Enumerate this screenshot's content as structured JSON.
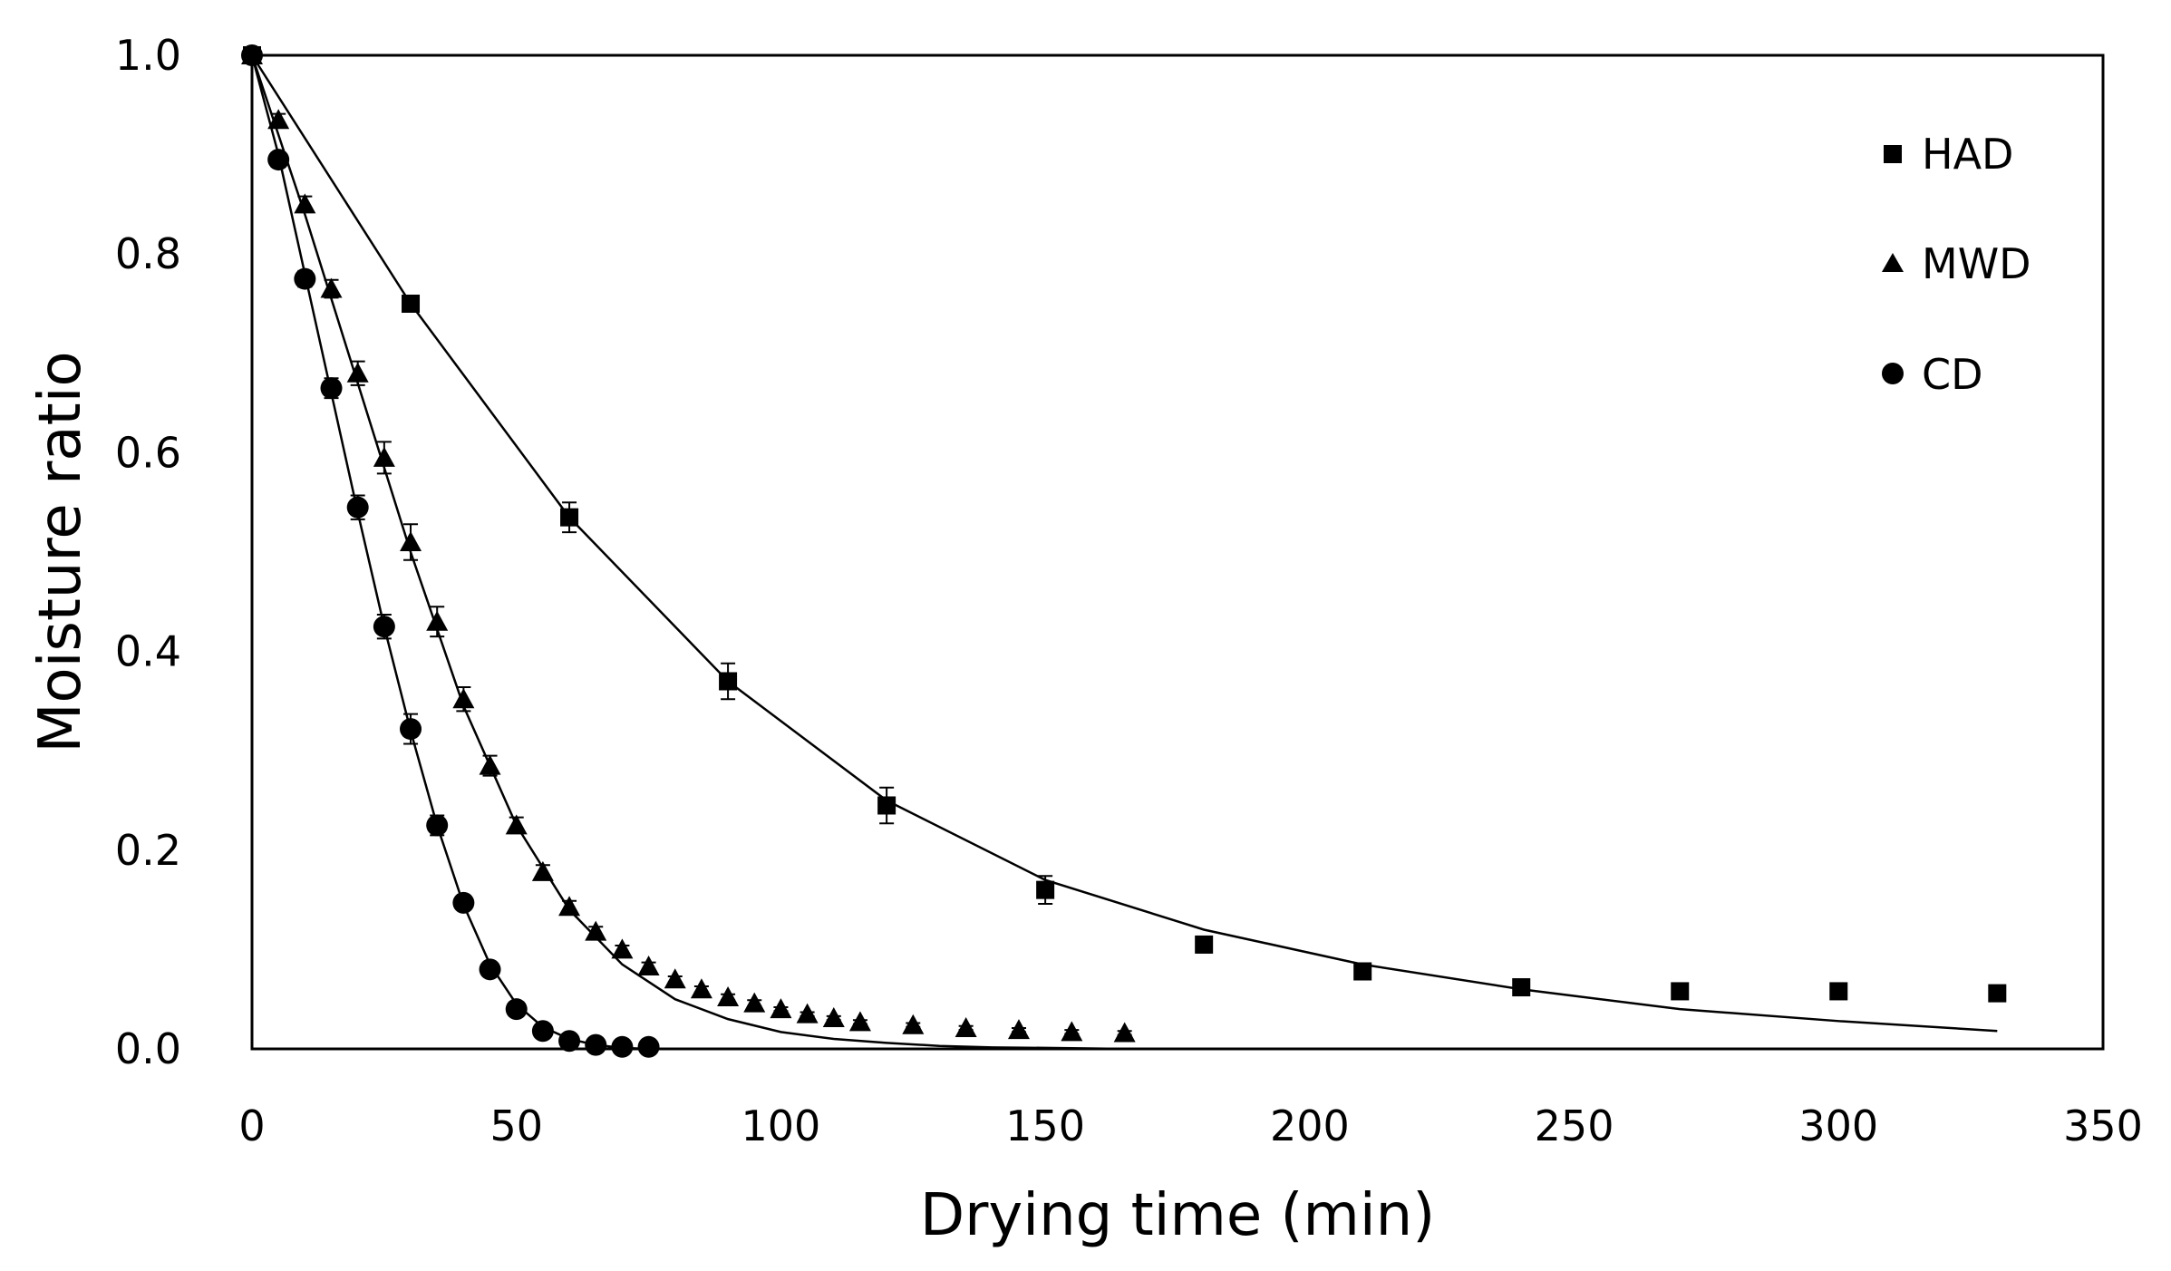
{
  "chart_data": {
    "type": "scatter",
    "title": "",
    "xlabel": "Drying time (min)",
    "ylabel": "Moisture ratio",
    "xlim": [
      0,
      350
    ],
    "ylim": [
      0,
      1.0
    ],
    "x_ticks": [
      "0",
      "50",
      "100",
      "150",
      "200",
      "250",
      "300",
      "350"
    ],
    "y_ticks": [
      "0.0",
      "0.2",
      "0.4",
      "0.6",
      "0.8",
      "1.0"
    ],
    "legend_position": "top-right",
    "grid": false,
    "series": [
      {
        "name": "HAD",
        "marker": "square",
        "x": [
          0,
          30,
          60,
          90,
          120,
          150,
          180,
          210,
          240,
          270,
          300,
          330
        ],
        "y": [
          1.0,
          0.75,
          0.535,
          0.37,
          0.245,
          0.16,
          0.105,
          0.078,
          0.062,
          0.058,
          0.058,
          0.056
        ],
        "err": [
          0,
          0.008,
          0.015,
          0.018,
          0.018,
          0.014,
          0.008,
          0.005,
          0.004,
          0.003,
          0.003,
          0.003
        ],
        "fit_x": [
          0,
          30,
          60,
          90,
          120,
          150,
          180,
          210,
          240,
          270,
          300,
          330
        ],
        "fit_y": [
          1.0,
          0.75,
          0.535,
          0.37,
          0.25,
          0.17,
          0.12,
          0.085,
          0.06,
          0.04,
          0.028,
          0.018
        ]
      },
      {
        "name": "MWD",
        "marker": "triangle",
        "x": [
          0,
          5,
          10,
          15,
          20,
          25,
          30,
          35,
          40,
          45,
          50,
          55,
          60,
          65,
          70,
          75,
          80,
          85,
          90,
          95,
          100,
          105,
          110,
          115,
          125,
          135,
          145,
          155,
          165
        ],
        "y": [
          1.0,
          0.935,
          0.85,
          0.765,
          0.68,
          0.595,
          0.51,
          0.43,
          0.352,
          0.285,
          0.225,
          0.178,
          0.143,
          0.118,
          0.1,
          0.083,
          0.07,
          0.06,
          0.052,
          0.046,
          0.04,
          0.035,
          0.031,
          0.027,
          0.024,
          0.021,
          0.019,
          0.017,
          0.016
        ],
        "err": [
          0,
          0.006,
          0.008,
          0.009,
          0.012,
          0.016,
          0.018,
          0.015,
          0.012,
          0.01,
          0.008,
          0.007,
          0.006,
          0.005,
          0.004,
          0.004,
          0.003,
          0.003,
          0.003,
          0.003,
          0.002,
          0.002,
          0.002,
          0.002,
          0.002,
          0.002,
          0.002,
          0.002,
          0.002
        ],
        "fit_x": [
          0,
          10,
          20,
          30,
          40,
          50,
          60,
          70,
          80,
          90,
          100,
          110,
          120,
          130,
          140,
          150,
          165
        ],
        "fit_y": [
          1.0,
          0.84,
          0.67,
          0.5,
          0.345,
          0.225,
          0.14,
          0.085,
          0.05,
          0.03,
          0.017,
          0.01,
          0.006,
          0.003,
          0.0015,
          0.001,
          0.0
        ]
      },
      {
        "name": "CD",
        "marker": "circle",
        "x": [
          0,
          5,
          10,
          15,
          20,
          25,
          30,
          35,
          40,
          45,
          50,
          55,
          60,
          65,
          70,
          75
        ],
        "y": [
          1.0,
          0.895,
          0.775,
          0.665,
          0.545,
          0.425,
          0.322,
          0.225,
          0.147,
          0.08,
          0.04,
          0.018,
          0.008,
          0.004,
          0.002,
          0.002
        ],
        "err": [
          0,
          0.006,
          0.008,
          0.01,
          0.012,
          0.012,
          0.015,
          0.01,
          0.007,
          0.005,
          0.003,
          0.002,
          0.001,
          0.001,
          0.001,
          0.001
        ],
        "fit_x": [
          0,
          5,
          10,
          15,
          20,
          25,
          30,
          35,
          40,
          45,
          50,
          55,
          60,
          65,
          70,
          75
        ],
        "fit_y": [
          1.0,
          0.9,
          0.78,
          0.66,
          0.54,
          0.425,
          0.32,
          0.225,
          0.145,
          0.085,
          0.045,
          0.022,
          0.01,
          0.004,
          0.001,
          0.0
        ]
      }
    ]
  }
}
